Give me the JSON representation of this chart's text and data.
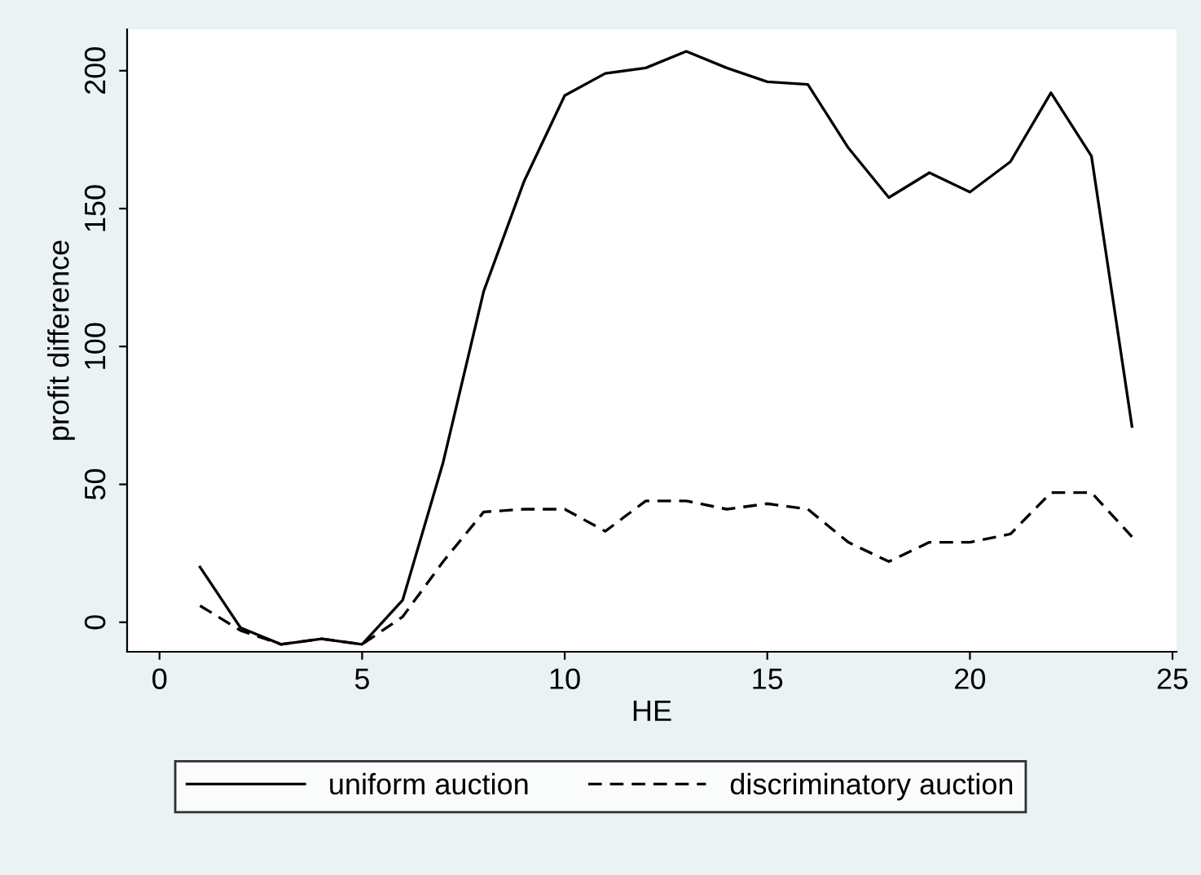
{
  "chart_data": {
    "type": "line",
    "xlabel": "HE",
    "ylabel": "profit difference",
    "x": [
      1,
      2,
      3,
      4,
      5,
      6,
      7,
      8,
      9,
      10,
      11,
      12,
      13,
      14,
      15,
      16,
      17,
      18,
      19,
      20,
      21,
      22,
      23,
      24
    ],
    "series": [
      {
        "name": "uniform auction",
        "color": "#000000",
        "line_style": "solid",
        "values": [
          20,
          -2,
          -8,
          -6,
          -8,
          8,
          58,
          120,
          160,
          191,
          199,
          201,
          207,
          201,
          196,
          195,
          172,
          154,
          163,
          156,
          167,
          192,
          169,
          71
        ]
      },
      {
        "name": "discriminatory auction",
        "color": "#000000",
        "line_style": "dashed",
        "values": [
          6,
          -3,
          -8,
          -6,
          -8,
          2,
          22,
          40,
          41,
          41,
          33,
          44,
          44,
          41,
          43,
          41,
          29,
          22,
          29,
          29,
          32,
          47,
          47,
          31
        ]
      }
    ],
    "xlim": [
      -0.8,
      25.1
    ],
    "ylim": [
      -10.7,
      215
    ],
    "xticks": [
      0,
      5,
      10,
      15,
      20,
      25
    ],
    "yticks": [
      0,
      50,
      100,
      150,
      200
    ],
    "grid": false,
    "legend": "bottom",
    "marker": "none"
  }
}
